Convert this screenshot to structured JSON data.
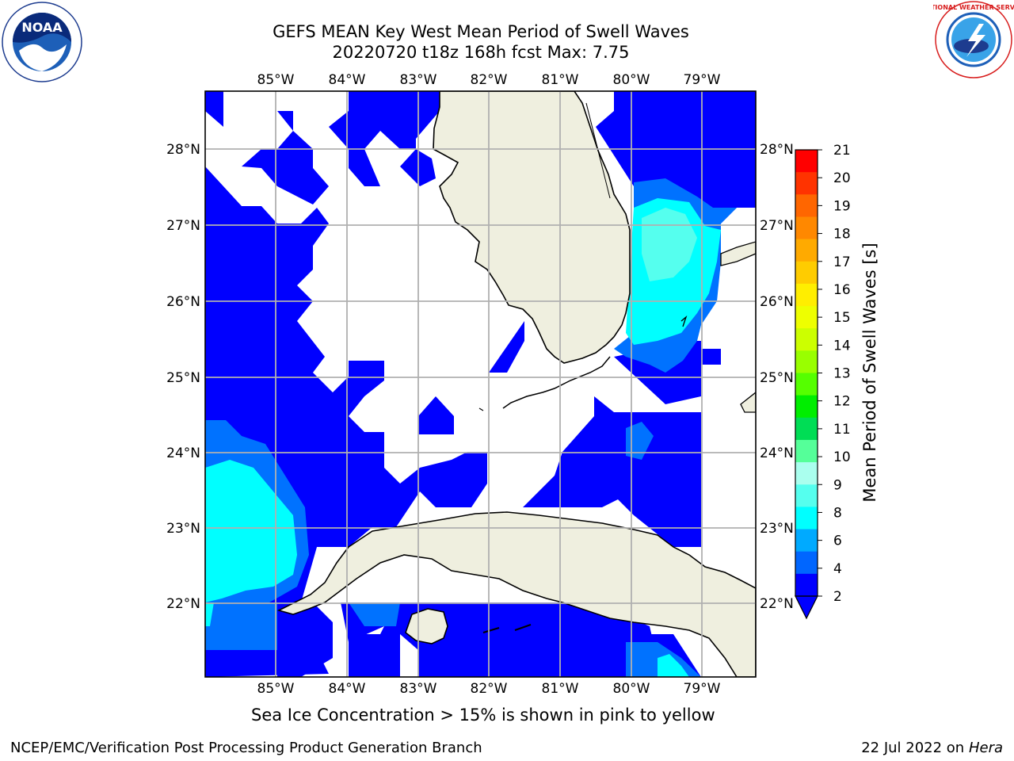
{
  "title": {
    "line1": "GEFS MEAN Key West Mean Period of Swell Waves",
    "line2": "20220720 t18z 168h fcst   Max: 7.75"
  },
  "logos": {
    "left": {
      "icon": "noaa-logo",
      "text": "NOAA"
    },
    "right": {
      "icon": "nws-logo",
      "text": "NATIONAL WEATHER SERVICE"
    }
  },
  "map": {
    "lon_labels": [
      "85°W",
      "84°W",
      "83°W",
      "82°W",
      "81°W",
      "80°W",
      "79°W"
    ],
    "lat_labels": [
      "28°N",
      "27°N",
      "26°N",
      "25°N",
      "24°N",
      "23°N",
      "22°N"
    ],
    "colors": {
      "land": "#efefdf",
      "ocean_nodata": "#ffffff",
      "grid": "#b0b0b0",
      "coast": "#000000"
    }
  },
  "colorbar": {
    "label": "Mean Period of Swell Waves [s]",
    "ticks": [
      "21",
      "20",
      "19",
      "18",
      "17",
      "16",
      "15",
      "14",
      "13",
      "12",
      "11",
      "10",
      "9",
      "8",
      "6",
      "4",
      "2"
    ],
    "colors": [
      "#ff0000",
      "#ff3300",
      "#ff6600",
      "#ff8800",
      "#ffaa00",
      "#ffcc00",
      "#ffee00",
      "#eeff00",
      "#ccff00",
      "#99ff00",
      "#55ff00",
      "#00ee00",
      "#00dd55",
      "#55ff99",
      "#aaffee",
      "#55ffee",
      "#00ffff",
      "#00aaff",
      "#0066ff",
      "#0000ff"
    ]
  },
  "note": "Sea Ice Concentration > 15% is shown in pink to yellow",
  "footer": {
    "left": "NCEP/EMC/Verification Post Processing Product Generation Branch",
    "right_date": "22 Jul 2022 on ",
    "right_host": "Hera"
  }
}
